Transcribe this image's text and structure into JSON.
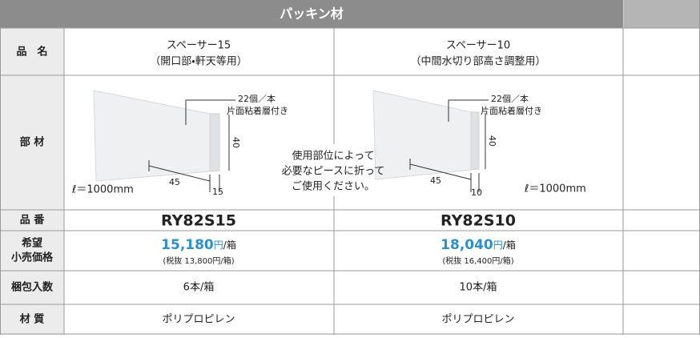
{
  "header": {
    "title": "パッキン材"
  },
  "row_labels": [
    "品　名",
    "部 材",
    "品 番",
    [
      "希望",
      "小売価格"
    ],
    "梱包入数",
    "材 質"
  ],
  "figure_note": [
    "使用部位によって",
    "必要なピースに折って",
    "ご使用ください。"
  ],
  "products": [
    {
      "name": "スペーサー15",
      "use": "（開口部・軒天等用）",
      "figure": {
        "count": "22個／本",
        "note": "片面粘着層付き",
        "height": "40",
        "width": "45",
        "thickness": "15",
        "length": "ℓ＝1000mm"
      },
      "part_no": "RY82S15",
      "price": "15,180",
      "price_unit": "円",
      "price_per": "/箱",
      "price_ex_tax": "(税抜 13,800円/箱)",
      "packing": "6本/箱",
      "material": "ポリプロピレン"
    },
    {
      "name": "スペーサー10",
      "use": "（中間水切り部高さ調整用）",
      "figure": {
        "count": "22個／本",
        "note": "片面粘着層付き",
        "height": "40",
        "width": "45",
        "thickness": "10",
        "length": "ℓ＝1000mm"
      },
      "part_no": "RY82S10",
      "price": "18,040",
      "price_unit": "円",
      "price_per": "/箱",
      "price_ex_tax": "(税抜 16,400円/箱)",
      "packing": "10本/箱",
      "material": "ポリプロピレン"
    }
  ]
}
